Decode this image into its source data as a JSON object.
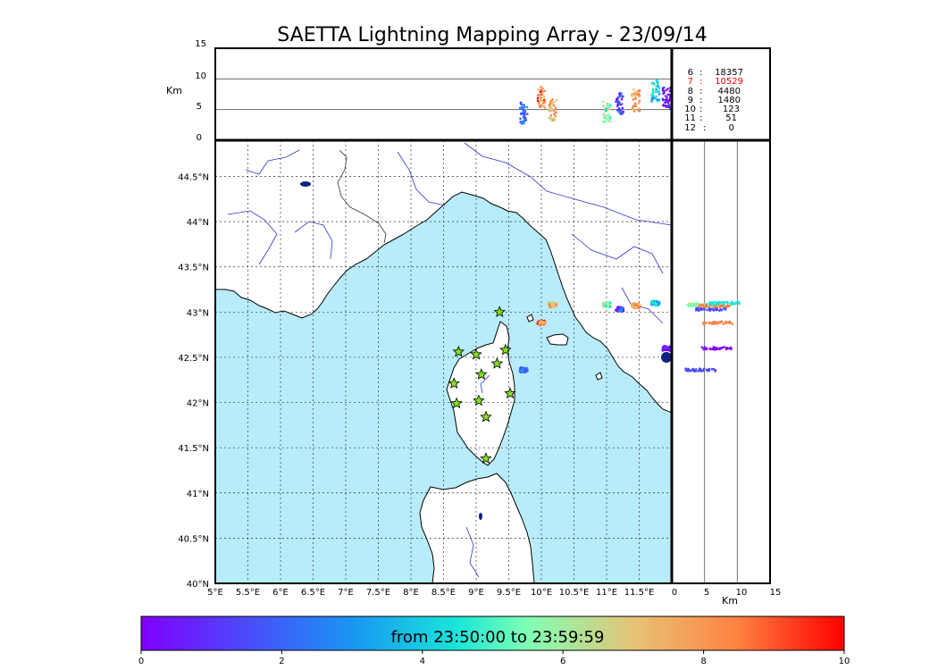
{
  "title": "SAETTA Lightning Mapping Array - 23/09/14",
  "altitude_panel": {
    "ylabel": "Km",
    "ylim": [
      0,
      15
    ],
    "ticks": [
      "0",
      "5",
      "10",
      "15"
    ],
    "reference_lines_km": [
      5,
      10
    ]
  },
  "side_panel": {
    "xlabel": "Km",
    "xlim": [
      0,
      15
    ],
    "ticks": [
      "0",
      "5",
      "10",
      "15"
    ],
    "reference_lines_km": [
      5,
      10
    ]
  },
  "map": {
    "lon_range": [
      5,
      12
    ],
    "lat_range": [
      40,
      44.9
    ],
    "lon_ticks": [
      "5°E",
      "5.5°E",
      "6°E",
      "6.5°E",
      "7°E",
      "7.5°E",
      "8°E",
      "8.5°E",
      "9°E",
      "9.5°E",
      "10°E",
      "10.5°E",
      "11°E",
      "11.5°E"
    ],
    "lat_ticks": [
      "40°N",
      "40.5°N",
      "41°N",
      "41.5°N",
      "42°N",
      "42.5°N",
      "43°N",
      "43.5°N",
      "44°N",
      "44.5°N"
    ],
    "sea_color": "#b8ecfa",
    "land_color": "#ffffff",
    "river_color": "#3333cc",
    "station_color": "#80e020"
  },
  "station_counts": [
    {
      "stations": "6",
      "count": "18357",
      "color": "#000000"
    },
    {
      "stations": "7",
      "count": "10529",
      "color": "#ff0000"
    },
    {
      "stations": "8",
      "count": "4480",
      "color": "#000000"
    },
    {
      "stations": "9",
      "count": "1480",
      "color": "#000000"
    },
    {
      "stations": "10",
      "count": "123",
      "color": "#000000"
    },
    {
      "stations": "11",
      "count": "51",
      "color": "#000000"
    },
    {
      "stations": "12",
      "count": "0",
      "color": "#000000"
    }
  ],
  "colorbar": {
    "label": "from 23:50:00 to 23:59:59",
    "range": [
      0,
      10
    ],
    "ticks": [
      "0",
      "2",
      "4",
      "6",
      "8",
      "10"
    ],
    "colors": [
      "#7f00ff",
      "#4b4bfb",
      "#1996f3",
      "#19e6d8",
      "#80ffb4",
      "#e6c476",
      "#ff8040",
      "#ff0000"
    ]
  },
  "chart_data": {
    "type": "scatter",
    "title": "SAETTA Lightning Mapping Array - 23/09/14",
    "stations": [
      {
        "lon": 9.36,
        "lat": 43.0
      },
      {
        "lon": 8.73,
        "lat": 42.56
      },
      {
        "lon": 9.0,
        "lat": 42.53
      },
      {
        "lon": 9.45,
        "lat": 42.58
      },
      {
        "lon": 9.32,
        "lat": 42.43
      },
      {
        "lon": 9.08,
        "lat": 42.31
      },
      {
        "lon": 8.66,
        "lat": 42.21
      },
      {
        "lon": 9.52,
        "lat": 42.1
      },
      {
        "lon": 8.7,
        "lat": 41.99
      },
      {
        "lon": 9.04,
        "lat": 42.02
      },
      {
        "lon": 9.15,
        "lat": 41.84
      },
      {
        "lon": 9.15,
        "lat": 41.38
      }
    ],
    "lightning_clusters": [
      {
        "lon": 9.73,
        "lat": 42.36,
        "alt_km": 4.5,
        "time_min": 2.0
      },
      {
        "lon": 10.0,
        "lat": 42.88,
        "alt_km": 7.0,
        "time_min": 8.5
      },
      {
        "lon": 10.18,
        "lat": 43.08,
        "alt_km": 5.0,
        "time_min": 7.5
      },
      {
        "lon": 11.0,
        "lat": 43.08,
        "alt_km": 4.5,
        "time_min": 6.0
      },
      {
        "lon": 11.2,
        "lat": 43.03,
        "alt_km": 6.0,
        "time_min": 1.5
      },
      {
        "lon": 11.45,
        "lat": 43.07,
        "alt_km": 6.5,
        "time_min": 8.0
      },
      {
        "lon": 11.75,
        "lat": 43.1,
        "alt_km": 8.0,
        "time_min": 4.0
      },
      {
        "lon": 11.92,
        "lat": 42.6,
        "alt_km": 7.0,
        "time_min": 0.5
      }
    ]
  }
}
